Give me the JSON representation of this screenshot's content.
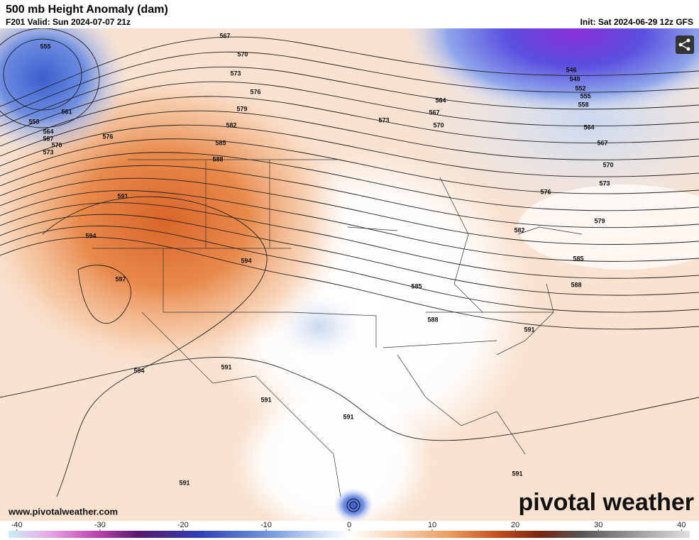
{
  "header": {
    "title": "500 mb Height Anomaly (dam)",
    "valid": "F201 Valid: Sun 2024-07-07 21z",
    "init": "Init: Sat 2024-06-29 12z GFS"
  },
  "map": {
    "contour_labels": [
      555,
      561,
      558,
      564,
      567,
      570,
      573,
      576,
      567,
      570,
      573,
      576,
      579,
      582,
      585,
      588,
      591,
      594,
      597,
      594,
      594,
      591,
      591,
      591,
      591,
      585,
      588,
      591,
      564,
      567,
      570,
      573,
      546,
      549,
      552,
      555,
      558,
      564,
      567,
      570,
      573,
      576,
      579,
      582,
      585,
      588,
      591
    ]
  },
  "footer": {
    "website": "www.pivotalweather.com",
    "logo": "pivotal weather"
  },
  "colorbar": {
    "xlim": [
      -41,
      41
    ],
    "ticks": [
      -40,
      -30,
      -20,
      -10,
      0,
      10,
      20,
      30,
      40
    ]
  }
}
